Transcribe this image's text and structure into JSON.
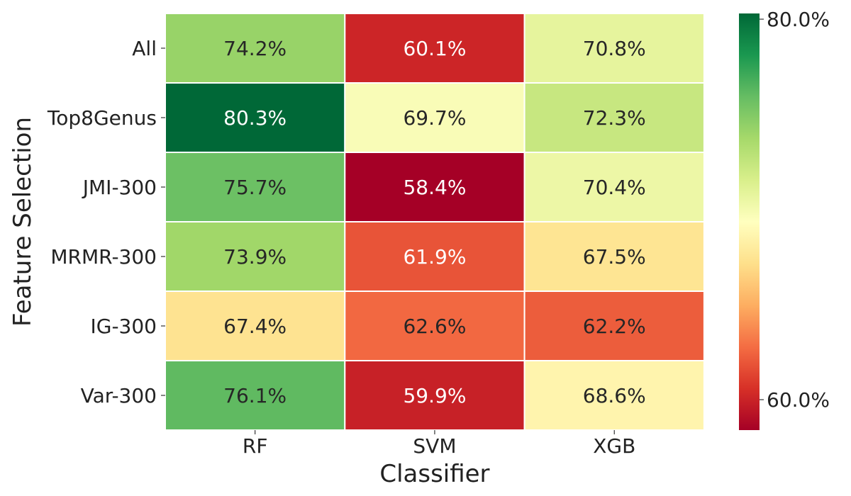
{
  "chart_data": {
    "type": "heatmap",
    "title": "",
    "xlabel": "Classifier",
    "ylabel": "Feature Selection",
    "x_categories": [
      "RF",
      "SVM",
      "XGB"
    ],
    "y_categories": [
      "All",
      "Top8Genus",
      "JMI-300",
      "MRMR-300",
      "IG-300",
      "Var-300"
    ],
    "values": [
      [
        74.2,
        60.1,
        70.8
      ],
      [
        80.3,
        69.7,
        72.3
      ],
      [
        75.7,
        58.4,
        70.4
      ],
      [
        73.9,
        61.9,
        67.5
      ],
      [
        67.4,
        62.6,
        62.2
      ],
      [
        76.1,
        59.9,
        68.6
      ]
    ],
    "cell_labels": [
      [
        "74.2%",
        "60.1%",
        "70.8%"
      ],
      [
        "80.3%",
        "69.7%",
        "72.3%"
      ],
      [
        "75.7%",
        "58.4%",
        "70.4%"
      ],
      [
        "73.9%",
        "61.9%",
        "67.5%"
      ],
      [
        "67.4%",
        "62.6%",
        "62.2%"
      ],
      [
        "76.1%",
        "59.9%",
        "68.6%"
      ]
    ],
    "colorscale": "RdYlGn",
    "color_range": [
      58.4,
      80.3
    ],
    "colorbar_ticks": [
      {
        "value": 80.0,
        "label": "80.0%"
      },
      {
        "value": 60.0,
        "label": "60.0%"
      }
    ],
    "colorbar_position": "right",
    "grid": false
  }
}
